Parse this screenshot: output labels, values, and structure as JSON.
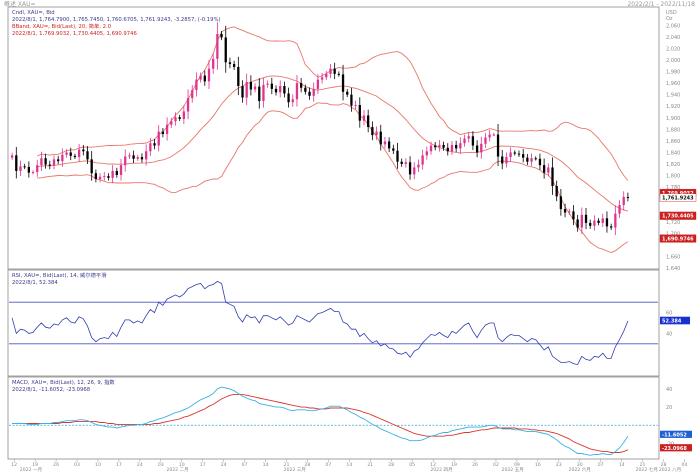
{
  "window": {
    "title": "概述 XAU=",
    "range_text": "2022/2/1 - 2022/11/18"
  },
  "chart_data": [
    {
      "type": "candlestick",
      "panel": "price",
      "legend": [
        "Cndl, XAU=, Bid",
        "2022/8/1, 1,764.7900, 1,765.7450, 1,760.6705, 1,761.9243, -3.2857, (-0.19%)",
        "BBand, XAU=, Bid(Last), 20, 简单, 2.0",
        "2022/8/1, 1,769.9032, 1,730.4405, 1,690.9746"
      ],
      "y_unit": "USD",
      "y_unit2": "Oz",
      "ylim": [
        1640,
        2090
      ],
      "y_ticks": [
        {
          "v": 2060,
          "label": "2,060"
        },
        {
          "v": 2040,
          "label": "2,040"
        },
        {
          "v": 2020,
          "label": "2,020"
        },
        {
          "v": 2000,
          "label": "2,000"
        },
        {
          "v": 1980,
          "label": "1,980"
        },
        {
          "v": 1960,
          "label": "1,960"
        },
        {
          "v": 1940,
          "label": "1,940"
        },
        {
          "v": 1920,
          "label": "1,920"
        },
        {
          "v": 1900,
          "label": "1,900"
        },
        {
          "v": 1880,
          "label": "1,880"
        },
        {
          "v": 1860,
          "label": "1,860"
        },
        {
          "v": 1840,
          "label": "1,840"
        },
        {
          "v": 1820,
          "label": "1,820"
        },
        {
          "v": 1800,
          "label": "1,800"
        },
        {
          "v": 1780,
          "label": "1,780"
        },
        {
          "v": 1720,
          "label": "1,720"
        },
        {
          "v": 1700,
          "label": "1,700"
        },
        {
          "v": 1660,
          "label": "1,660"
        },
        {
          "v": 1640,
          "label": "1,640"
        }
      ],
      "price_tags": [
        {
          "v": 1769.9032,
          "label": "1,769.9032",
          "color": "#cc1f1f",
          "text_color": "#ffffff"
        },
        {
          "v": 1761.9243,
          "label": "1,761.9243",
          "color": "#ffffff",
          "text_color": "#111111"
        },
        {
          "v": 1730.4405,
          "label": "1,730.4405",
          "color": "#cc1f1f",
          "text_color": "#ffffff"
        },
        {
          "v": 1690.9746,
          "label": "1,690.9746",
          "color": "#cc1f1f",
          "text_color": "#ffffff"
        }
      ],
      "close": [
        1835,
        1808,
        1816,
        1815,
        1805,
        1806,
        1818,
        1830,
        1819,
        1817,
        1828,
        1825,
        1836,
        1840,
        1834,
        1832,
        1845,
        1842,
        1828,
        1804,
        1794,
        1798,
        1799,
        1796,
        1808,
        1801,
        1818,
        1833,
        1835,
        1829,
        1832,
        1828,
        1842,
        1856,
        1852,
        1876,
        1872,
        1888,
        1894,
        1901,
        1898,
        1911,
        1934,
        1948,
        1966,
        1973,
        1963,
        1985,
        2002,
        2045,
        2039,
        1996,
        1993,
        1988,
        1955,
        1935,
        1962,
        1949,
        1954,
        1929,
        1957,
        1959,
        1950,
        1944,
        1955,
        1942,
        1927,
        1932,
        1960,
        1952,
        1945,
        1938,
        1950,
        1966,
        1970,
        1976,
        1985,
        1976,
        1975,
        1945,
        1940,
        1921,
        1922,
        1895,
        1904,
        1884,
        1870,
        1876,
        1854,
        1859,
        1847,
        1843,
        1824,
        1820,
        1823,
        1802,
        1814,
        1819,
        1835,
        1842,
        1852,
        1849,
        1853,
        1848,
        1842,
        1853,
        1847,
        1856,
        1864,
        1868,
        1852,
        1840,
        1855,
        1866,
        1871,
        1871,
        1833,
        1821,
        1832,
        1840,
        1838,
        1837,
        1831,
        1824,
        1830,
        1829,
        1818,
        1805,
        1814,
        1782,
        1764,
        1742,
        1736,
        1738,
        1724,
        1710,
        1732,
        1718,
        1713,
        1722,
        1718,
        1726,
        1712,
        1710,
        1734,
        1749,
        1763,
        1762
      ]
    },
    {
      "type": "line",
      "panel": "rsi",
      "legend": [
        "RSI, XAU=, Bid(Last), 14, 威尔德平滑",
        "2022/8/1, 52.384"
      ],
      "ylim": [
        0,
        100
      ],
      "levels": [
        70,
        30
      ],
      "tag": {
        "v": 52.384,
        "label": "52.384"
      },
      "y_ticks": [
        {
          "v": 60,
          "label": "60"
        },
        {
          "v": 40,
          "label": "40"
        }
      ],
      "values": [
        55,
        40,
        44,
        43,
        40,
        41,
        46,
        50,
        46,
        45,
        49,
        48,
        53,
        55,
        51,
        50,
        56,
        54,
        47,
        36,
        32,
        35,
        36,
        35,
        41,
        37,
        46,
        53,
        53,
        50,
        52,
        50,
        57,
        63,
        60,
        70,
        67,
        73,
        75,
        77,
        75,
        78,
        83,
        85,
        87,
        88,
        83,
        86,
        87,
        90,
        88,
        70,
        68,
        66,
        56,
        51,
        58,
        55,
        56,
        50,
        57,
        57,
        55,
        53,
        56,
        52,
        48,
        50,
        57,
        55,
        53,
        51,
        55,
        59,
        60,
        62,
        64,
        61,
        61,
        51,
        49,
        44,
        44,
        37,
        40,
        35,
        31,
        33,
        28,
        30,
        26,
        25,
        21,
        20,
        22,
        17,
        23,
        25,
        31,
        35,
        39,
        38,
        41,
        38,
        36,
        42,
        40,
        44,
        48,
        50,
        42,
        36,
        43,
        48,
        50,
        50,
        36,
        32,
        36,
        39,
        38,
        38,
        35,
        32,
        35,
        34,
        29,
        24,
        27,
        18,
        15,
        12,
        12,
        13,
        11,
        10,
        18,
        15,
        14,
        18,
        17,
        21,
        16,
        16,
        27,
        34,
        42,
        52
      ]
    },
    {
      "type": "line",
      "panel": "macd",
      "legend": [
        "MACD, XAU=, Bid(Last), 12, 26, 9, 指数",
        "2022/8/1, -11.6052, -23.0968"
      ],
      "ylim": [
        -36,
        52
      ],
      "zero_line": 0,
      "y_ticks": [
        {
          "v": 40,
          "label": "40"
        },
        {
          "v": 20,
          "label": "20"
        },
        {
          "v": -20,
          "label": "-20"
        }
      ],
      "tags": [
        {
          "v": -11.6052,
          "label": "-11.6052",
          "color": "#1f5fd6"
        },
        {
          "v": -23.0968,
          "label": "-23.0968",
          "color": "#cc1f1f"
        }
      ],
      "series": [
        {
          "values": [
            2,
            2,
            2,
            2,
            1,
            1,
            1,
            2,
            2,
            2,
            3,
            3,
            4,
            5,
            5,
            5,
            6,
            6,
            5,
            3,
            1,
            0,
            -1,
            -2,
            -2,
            -3,
            -2,
            -1,
            0,
            0,
            1,
            1,
            2,
            4,
            5,
            7,
            8,
            10,
            12,
            14,
            15,
            17,
            19,
            22,
            25,
            28,
            30,
            32,
            35,
            40,
            42,
            41,
            40,
            38,
            35,
            32,
            30,
            28,
            27,
            24,
            23,
            22,
            21,
            20,
            20,
            19,
            17,
            16,
            17,
            17,
            17,
            16,
            16,
            17,
            18,
            19,
            21,
            21,
            21,
            19,
            17,
            14,
            12,
            9,
            7,
            4,
            1,
            -1,
            -4,
            -6,
            -8,
            -10,
            -12,
            -14,
            -15,
            -17,
            -17,
            -17,
            -16,
            -14,
            -12,
            -11,
            -9,
            -8,
            -8,
            -6,
            -5,
            -4,
            -3,
            -2,
            -2,
            -2,
            -2,
            -1,
            0,
            0,
            -2,
            -4,
            -4,
            -4,
            -5,
            -5,
            -6,
            -7,
            -7,
            -7,
            -8,
            -9,
            -10,
            -13,
            -16,
            -20,
            -23,
            -25,
            -28,
            -31,
            -31,
            -32,
            -33,
            -32,
            -32,
            -31,
            -32,
            -32,
            -29,
            -25,
            -19,
            -12
          ]
        },
        {
          "values": [
            2,
            2,
            2,
            2,
            2,
            2,
            2,
            2,
            2,
            2,
            2,
            2,
            3,
            3,
            3,
            4,
            4,
            4,
            4,
            4,
            4,
            3,
            3,
            2,
            2,
            1,
            1,
            1,
            1,
            1,
            1,
            1,
            1,
            1,
            2,
            2,
            3,
            4,
            5,
            6,
            7,
            9,
            10,
            12,
            14,
            16,
            18,
            21,
            23,
            26,
            29,
            31,
            33,
            34,
            34,
            34,
            33,
            32,
            31,
            30,
            29,
            28,
            27,
            26,
            25,
            24,
            23,
            22,
            21,
            20,
            20,
            19,
            19,
            18,
            18,
            18,
            19,
            19,
            19,
            19,
            19,
            18,
            17,
            16,
            14,
            13,
            11,
            9,
            7,
            5,
            3,
            1,
            -1,
            -3,
            -5,
            -7,
            -9,
            -10,
            -11,
            -12,
            -12,
            -12,
            -12,
            -12,
            -11,
            -11,
            -10,
            -9,
            -8,
            -8,
            -7,
            -6,
            -5,
            -5,
            -4,
            -3,
            -3,
            -3,
            -3,
            -3,
            -3,
            -4,
            -4,
            -4,
            -5,
            -5,
            -6,
            -6,
            -7,
            -8,
            -9,
            -11,
            -13,
            -15,
            -18,
            -20,
            -22,
            -24,
            -26,
            -27,
            -28,
            -29,
            -29,
            -30,
            -30,
            -30,
            -29,
            -27
          ]
        }
      ]
    }
  ],
  "x_axis": {
    "day_ticks": [
      {
        "i": 1,
        "label": "12"
      },
      {
        "i": 6,
        "label": "19"
      },
      {
        "i": 11,
        "label": "26"
      },
      {
        "i": 16,
        "label": "03"
      },
      {
        "i": 21,
        "label": "10"
      },
      {
        "i": 26,
        "label": "17"
      },
      {
        "i": 31,
        "label": "24"
      },
      {
        "i": 36,
        "label": "03"
      },
      {
        "i": 41,
        "label": "10"
      },
      {
        "i": 46,
        "label": "17"
      },
      {
        "i": 51,
        "label": "24"
      },
      {
        "i": 56,
        "label": "07"
      },
      {
        "i": 61,
        "label": "14"
      },
      {
        "i": 66,
        "label": "21"
      },
      {
        "i": 71,
        "label": "28"
      },
      {
        "i": 76,
        "label": "07"
      },
      {
        "i": 81,
        "label": "14"
      },
      {
        "i": 86,
        "label": "21"
      },
      {
        "i": 91,
        "label": "28"
      },
      {
        "i": 96,
        "label": "05"
      },
      {
        "i": 101,
        "label": "12"
      },
      {
        "i": 106,
        "label": "19"
      },
      {
        "i": 111,
        "label": "26"
      },
      {
        "i": 116,
        "label": "02"
      },
      {
        "i": 121,
        "label": "09"
      },
      {
        "i": 126,
        "label": "16"
      },
      {
        "i": 131,
        "label": "23"
      },
      {
        "i": 136,
        "label": "30"
      },
      {
        "i": 141,
        "label": "07"
      },
      {
        "i": 146,
        "label": "14"
      },
      {
        "i": 151,
        "label": "21"
      },
      {
        "i": 156,
        "label": "28"
      },
      {
        "i": 161,
        "label": "04"
      }
    ],
    "month_labels": [
      {
        "i": 5,
        "label": "2022 一月"
      },
      {
        "i": 40,
        "label": "2022 二月"
      },
      {
        "i": 68,
        "label": "2022 三月"
      },
      {
        "i": 103,
        "label": "2022 四月"
      },
      {
        "i": 120,
        "label": "2022 五月"
      },
      {
        "i": 136,
        "label": "2022 六月"
      },
      {
        "i": 152,
        "label": "2022 七月"
      },
      {
        "i": 166,
        "label": "2022 八月"
      }
    ]
  },
  "colors": {
    "candle_up": "#e0338f",
    "candle_down": "#000000",
    "bband": "#e8776a",
    "rsi_line": "#2f3fb0",
    "rsi_levels": "#4a55c8",
    "macd_line": "#3ab0e6",
    "signal_line": "#d9372e",
    "zero_line": "#2fa8d8",
    "panel_border": "#8a8a8a",
    "tick_text": "#888888",
    "legend_text": "#3a3a8a",
    "legend_text_red": "#cc1f1f"
  }
}
